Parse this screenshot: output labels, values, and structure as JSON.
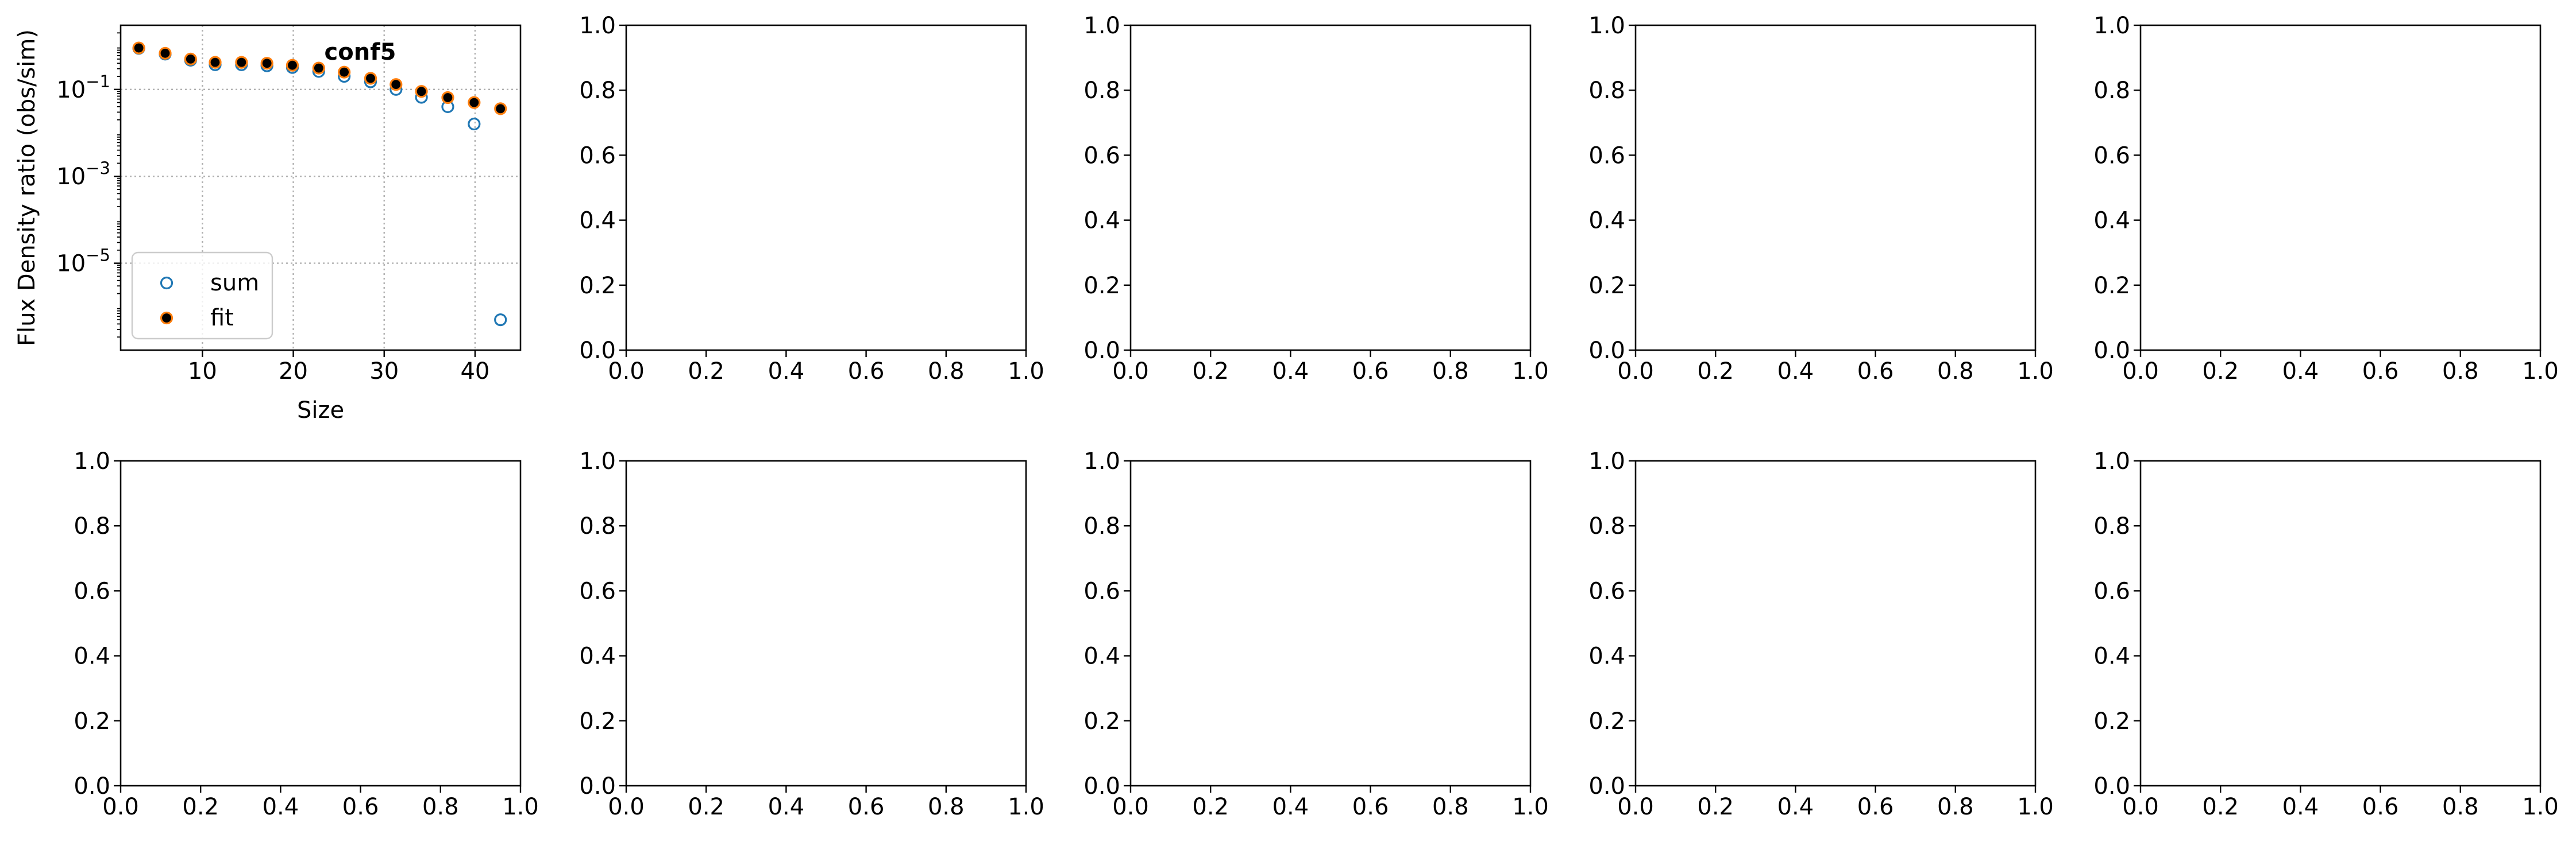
{
  "figure": {
    "background": "#ffffff",
    "rows": 2,
    "cols": 5
  },
  "chart_data": [
    {
      "type": "scatter",
      "title": "conf5",
      "xlabel": "Size",
      "ylabel": "Flux Density ratio (obs/sim)",
      "xlim": [
        1,
        45
      ],
      "ylim": [
        1e-07,
        3
      ],
      "yscale": "log",
      "grid": true,
      "legend_position": "lower-left",
      "x_ticks": [
        10,
        20,
        30,
        40
      ],
      "y_ticks": [
        {
          "value": 1e-05,
          "base": "10",
          "exp": "−5"
        },
        {
          "value": 0.001,
          "base": "10",
          "exp": "−3"
        },
        {
          "value": 0.1,
          "base": "10",
          "exp": "−1"
        }
      ],
      "series": [
        {
          "name": "sum",
          "marker": "open-circle",
          "color": "#1f77b4",
          "x": [
            3,
            5.9,
            8.7,
            11.4,
            14.3,
            17.1,
            19.9,
            22.8,
            25.6,
            28.5,
            31.3,
            34.1,
            37,
            39.9,
            42.8
          ],
          "y": [
            0.88,
            0.65,
            0.47,
            0.37,
            0.37,
            0.35,
            0.32,
            0.26,
            0.2,
            0.15,
            0.1,
            0.066,
            0.04,
            0.016,
            5e-07
          ]
        },
        {
          "name": "fit",
          "marker": "filled-circle",
          "color": "#000000",
          "edge_color": "#ff7f0e",
          "x": [
            3,
            5.9,
            8.7,
            11.4,
            14.3,
            17.1,
            19.9,
            22.8,
            25.6,
            28.5,
            31.3,
            34.1,
            37,
            39.9,
            42.8
          ],
          "y": [
            0.9,
            0.68,
            0.5,
            0.42,
            0.42,
            0.4,
            0.36,
            0.31,
            0.25,
            0.18,
            0.13,
            0.09,
            0.065,
            0.05,
            0.036
          ]
        }
      ]
    },
    {
      "type": "scatter",
      "xlim": [
        0,
        1
      ],
      "ylim": [
        0,
        1
      ],
      "ticks": [
        "0.0",
        "0.2",
        "0.4",
        "0.6",
        "0.8",
        "1.0"
      ]
    },
    {
      "type": "scatter",
      "xlim": [
        0,
        1
      ],
      "ylim": [
        0,
        1
      ],
      "ticks": [
        "0.0",
        "0.2",
        "0.4",
        "0.6",
        "0.8",
        "1.0"
      ]
    },
    {
      "type": "scatter",
      "xlim": [
        0,
        1
      ],
      "ylim": [
        0,
        1
      ],
      "ticks": [
        "0.0",
        "0.2",
        "0.4",
        "0.6",
        "0.8",
        "1.0"
      ]
    },
    {
      "type": "scatter",
      "xlim": [
        0,
        1
      ],
      "ylim": [
        0,
        1
      ],
      "ticks": [
        "0.0",
        "0.2",
        "0.4",
        "0.6",
        "0.8",
        "1.0"
      ]
    },
    {
      "type": "scatter",
      "xlim": [
        0,
        1
      ],
      "ylim": [
        0,
        1
      ],
      "ticks": [
        "0.0",
        "0.2",
        "0.4",
        "0.6",
        "0.8",
        "1.0"
      ]
    },
    {
      "type": "scatter",
      "xlim": [
        0,
        1
      ],
      "ylim": [
        0,
        1
      ],
      "ticks": [
        "0.0",
        "0.2",
        "0.4",
        "0.6",
        "0.8",
        "1.0"
      ]
    },
    {
      "type": "scatter",
      "xlim": [
        0,
        1
      ],
      "ylim": [
        0,
        1
      ],
      "ticks": [
        "0.0",
        "0.2",
        "0.4",
        "0.6",
        "0.8",
        "1.0"
      ]
    },
    {
      "type": "scatter",
      "xlim": [
        0,
        1
      ],
      "ylim": [
        0,
        1
      ],
      "ticks": [
        "0.0",
        "0.2",
        "0.4",
        "0.6",
        "0.8",
        "1.0"
      ]
    },
    {
      "type": "scatter",
      "xlim": [
        0,
        1
      ],
      "ylim": [
        0,
        1
      ],
      "ticks": [
        "0.0",
        "0.2",
        "0.4",
        "0.6",
        "0.8",
        "1.0"
      ]
    }
  ]
}
